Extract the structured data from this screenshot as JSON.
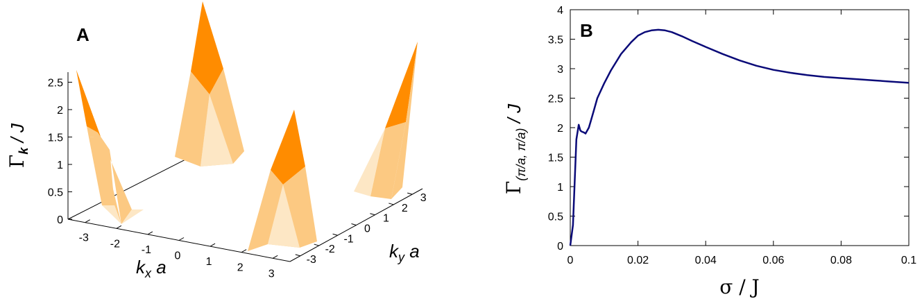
{
  "panels": {
    "a_label": "A",
    "b_label": "B"
  },
  "chart_data": [
    {
      "type": "surface3d",
      "panel": "A",
      "zlabel_symbol": "Γ",
      "zlabel_sub": "k",
      "zlabel_rest": " / J",
      "xlabel_var": "k",
      "xlabel_sub": "x",
      "xlabel_rest": " a",
      "ylabel_var": "k",
      "ylabel_sub": "y",
      "ylabel_rest": " a",
      "zticks": [
        "0",
        "0.5",
        "1",
        "1.5",
        "2",
        "2.5"
      ],
      "xticks": [
        "-3",
        "-2",
        "-1",
        "0",
        "1",
        "2",
        "3"
      ],
      "yticks": [
        "-3",
        "-2",
        "-1",
        "0",
        "1",
        "2",
        "3"
      ],
      "peaks": [
        {
          "kx": -3.14,
          "ky": -3.14,
          "gamma": 2.7
        },
        {
          "kx": -3.14,
          "ky": 3.14,
          "gamma": 3.7
        },
        {
          "kx": 3.14,
          "ky": -3.14,
          "gamma": 2.1
        },
        {
          "kx": 3.14,
          "ky": 3.14,
          "gamma": 2.9
        }
      ],
      "colors": {
        "peak_dark": "#ff8c00",
        "peak_light": "#fcc982",
        "peak_pale": "#fde7c5"
      }
    },
    {
      "type": "line",
      "panel": "B",
      "ylabel_symbol": "Γ",
      "ylabel_sub": "(π/a, π/a)",
      "ylabel_rest": " / J",
      "xlabel": "σ / J",
      "xlim": [
        0,
        0.1
      ],
      "ylim": [
        0,
        4
      ],
      "xticks": [
        "0",
        "0.02",
        "0.04",
        "0.06",
        "0.08",
        "0.1"
      ],
      "yticks": [
        "0",
        "0.5",
        "1",
        "1.5",
        "2",
        "2.5",
        "3",
        "3.5",
        "4"
      ],
      "line_color": "#0a0a78",
      "series": [
        {
          "x": [
            0,
            0.0008,
            0.0018,
            0.0025,
            0.003,
            0.0035,
            0.004,
            0.0045,
            0.005,
            0.0055,
            0.006,
            0.007,
            0.008,
            0.01,
            0.012,
            0.015,
            0.018,
            0.02,
            0.022,
            0.024,
            0.026,
            0.028,
            0.03,
            0.033,
            0.036,
            0.04,
            0.045,
            0.05,
            0.055,
            0.06,
            0.065,
            0.07,
            0.075,
            0.08,
            0.085,
            0.09,
            0.095,
            0.1
          ],
          "y": [
            0,
            0.35,
            1.8,
            2.05,
            1.95,
            1.93,
            1.92,
            1.9,
            1.95,
            2.0,
            2.1,
            2.3,
            2.5,
            2.75,
            2.97,
            3.25,
            3.45,
            3.56,
            3.62,
            3.65,
            3.66,
            3.65,
            3.62,
            3.55,
            3.47,
            3.37,
            3.25,
            3.14,
            3.05,
            2.98,
            2.93,
            2.89,
            2.86,
            2.84,
            2.82,
            2.8,
            2.78,
            2.76
          ]
        }
      ]
    }
  ]
}
